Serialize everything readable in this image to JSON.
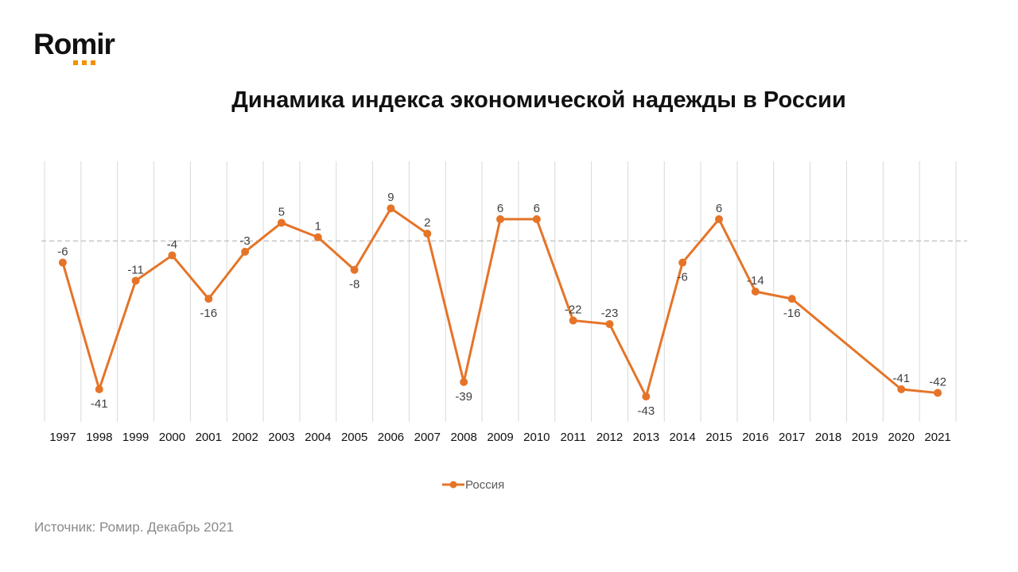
{
  "logo": {
    "text": "Romir",
    "colors": {
      "text": "#111111",
      "dots": "#f39200"
    }
  },
  "source_text": "Источник: Ромир. Декабрь 2021",
  "colors": {
    "series": "#e57428",
    "grid": "#d9d9d9",
    "zero_line": "#bfbfbf",
    "label": "#404040",
    "legend_text": "#595959"
  },
  "chart_data": {
    "type": "line",
    "title": "Динамика индекса экономической надежды в России",
    "xlabel": "",
    "ylabel": "",
    "categories": [
      "1997",
      "1998",
      "1999",
      "2000",
      "2001",
      "2002",
      "2003",
      "2004",
      "2005",
      "2006",
      "2007",
      "2008",
      "2009",
      "2010",
      "2011",
      "2012",
      "2013",
      "2014",
      "2015",
      "2016",
      "2017",
      "2018",
      "2019",
      "2020",
      "2021"
    ],
    "series": [
      {
        "name": "Россия",
        "values": [
          -6,
          -41,
          -11,
          -4,
          -16,
          -3,
          5,
          1,
          -8,
          9,
          2,
          -39,
          6,
          6,
          -22,
          -23,
          -43,
          -6,
          6,
          -14,
          -16,
          null,
          null,
          -41,
          -42
        ]
      }
    ],
    "ylim": [
      -50,
      22
    ],
    "zero_line": true,
    "vertical_grid": true,
    "legend": {
      "position": "bottom"
    }
  }
}
